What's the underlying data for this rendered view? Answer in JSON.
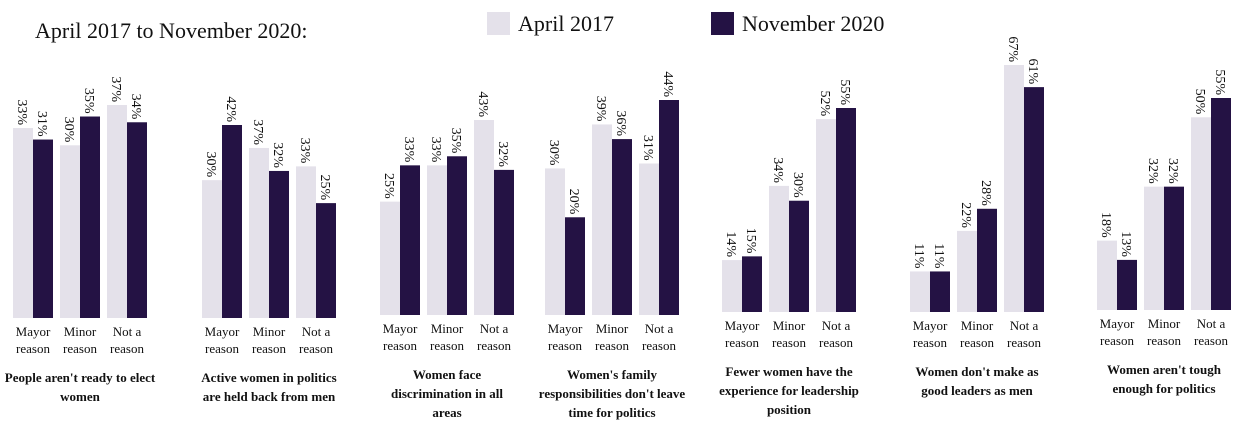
{
  "title": "April 2017 to November 2020:",
  "chart_data": [
    {
      "type": "bar",
      "title": "People aren't ready to elect women",
      "categories": [
        "Mayor reason",
        "Minor reason",
        "Not a reason"
      ],
      "series": [
        {
          "name": "April 2017",
          "color": "#e4e1ea",
          "values": [
            33,
            30,
            37
          ],
          "value_labels": [
            "33%",
            "30%",
            "37%"
          ]
        },
        {
          "name": "November 2020",
          "color": "#241244",
          "values": [
            31,
            35,
            34
          ],
          "value_labels": [
            "31%",
            "35%",
            "34%"
          ]
        }
      ]
    },
    {
      "type": "bar",
      "title": "Active women in politics are held back from men",
      "categories": [
        "Mayor reason",
        "Minor reason",
        "Not a reason"
      ],
      "series": [
        {
          "name": "April 2017",
          "color": "#e4e1ea",
          "values": [
            30,
            37,
            33
          ],
          "value_labels": [
            "30%",
            "37%",
            "33%"
          ]
        },
        {
          "name": "November 2020",
          "color": "#241244",
          "values": [
            42,
            32,
            25
          ],
          "value_labels": [
            "42%",
            "32%",
            "25%"
          ]
        }
      ]
    },
    {
      "type": "bar",
      "title": "Women face discrimination in all areas",
      "categories": [
        "Mayor reason",
        "Minor reason",
        "Not a reason"
      ],
      "series": [
        {
          "name": "April 2017",
          "color": "#e4e1ea",
          "values": [
            25,
            33,
            43
          ],
          "value_labels": [
            "25%",
            "33%",
            "43%"
          ]
        },
        {
          "name": "November 2020",
          "color": "#241244",
          "values": [
            33,
            35,
            32
          ],
          "value_labels": [
            "33%",
            "35%",
            "32%"
          ]
        }
      ]
    },
    {
      "type": "bar",
      "title": "Women's family responsibilities don't leave time for politics",
      "categories": [
        "Mayor reason",
        "Minor reason",
        "Not a reason"
      ],
      "series": [
        {
          "name": "April 2017",
          "color": "#e4e1ea",
          "values": [
            30,
            39,
            31
          ],
          "value_labels": [
            "30%",
            "39%",
            "31%"
          ]
        },
        {
          "name": "November 2020",
          "color": "#241244",
          "values": [
            20,
            36,
            44
          ],
          "value_labels": [
            "20%",
            "36%",
            "44%"
          ]
        }
      ]
    },
    {
      "type": "bar",
      "title": "Fewer women have the experience for leadership position",
      "categories": [
        "Mayor reason",
        "Minor reason",
        "Not a reason"
      ],
      "series": [
        {
          "name": "April 2017",
          "color": "#e4e1ea",
          "values": [
            14,
            34,
            52
          ],
          "value_labels": [
            "14%",
            "34%",
            "52%"
          ]
        },
        {
          "name": "November 2020",
          "color": "#241244",
          "values": [
            15,
            30,
            55
          ],
          "value_labels": [
            "15%",
            "30%",
            "55%"
          ]
        }
      ]
    },
    {
      "type": "bar",
      "title": "Women don't make as good leaders as men",
      "categories": [
        "Mayor reason",
        "Minor reason",
        "Not a reason"
      ],
      "series": [
        {
          "name": "April 2017",
          "color": "#e4e1ea",
          "values": [
            11,
            22,
            67
          ],
          "value_labels": [
            "11%",
            "22%",
            "67%"
          ]
        },
        {
          "name": "November 2020",
          "color": "#241244",
          "values": [
            11,
            28,
            61
          ],
          "value_labels": [
            "11%",
            "28%",
            "61%"
          ]
        }
      ]
    },
    {
      "type": "bar",
      "title": "Women aren't tough enough for politics",
      "categories": [
        "Mayor reason",
        "Minor reason",
        "Not a reason"
      ],
      "series": [
        {
          "name": "April 2017",
          "color": "#e4e1ea",
          "values": [
            18,
            32,
            50
          ],
          "value_labels": [
            "18%",
            "32%",
            "50%"
          ]
        },
        {
          "name": "November 2020",
          "color": "#241244",
          "values": [
            13,
            32,
            55
          ],
          "value_labels": [
            "13%",
            "32%",
            "55%"
          ]
        }
      ]
    }
  ]
}
